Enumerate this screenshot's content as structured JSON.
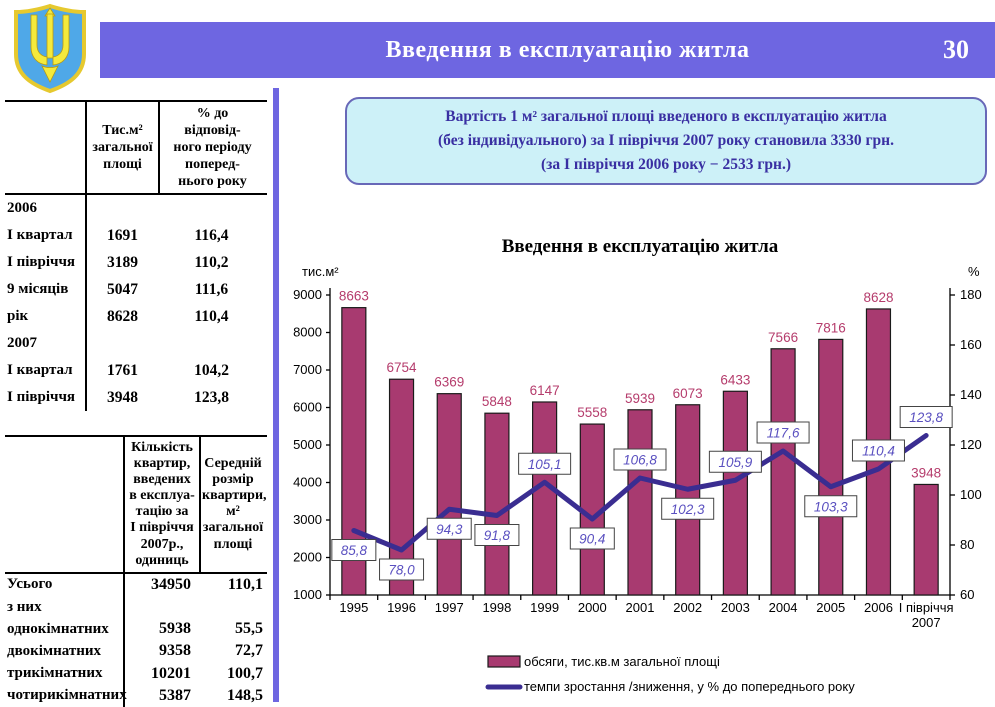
{
  "header": {
    "title": "Введення в експлуатацію житла",
    "page_number": "30"
  },
  "emblem": {
    "name": "ukraine-coat-of-arms",
    "shield_color": "#4fa8e8",
    "trident_color": "#f4ea3c",
    "border_color": "#e6c92f"
  },
  "accent_color": "#6e66e1",
  "info_box": {
    "text": "Вартість 1 м² загальної площі введеного в експлуатацію житла\n(без індивідуального) за І півріччя 2007 року становила 3330 грн.\n(за І півріччя 2006 року − 2533 грн.)"
  },
  "table1": {
    "col2_header": "Тис.м²\nзагальної\nплощі",
    "col3_header": "% до\nвідповід-\nного  періоду\nпоперед-\nнього року",
    "rows": [
      {
        "label": "2006",
        "area": "",
        "pct": ""
      },
      {
        "label": "І квартал",
        "area": "1691",
        "pct": "116,4"
      },
      {
        "label": "І півріччя",
        "area": "3189",
        "pct": "110,2"
      },
      {
        "label": "9 місяців",
        "area": "5047",
        "pct": "111,6"
      },
      {
        "label": "рік",
        "area": "8628",
        "pct": "110,4"
      },
      {
        "label": "2007",
        "area": "",
        "pct": ""
      },
      {
        "label": "І квартал",
        "area": "1761",
        "pct": "104,2"
      },
      {
        "label": "І півріччя",
        "area": "3948",
        "pct": "123,8"
      }
    ]
  },
  "table2": {
    "col2_header": "Кількість\nквартир,\nвведених\nв експлуа-\nтацію за\nІ півріччя\n2007р.,\nодиниць",
    "col3_header": "Середній\nрозмір\nквартири,\nм²\nзагальної\nплощі",
    "rows": [
      {
        "label": "Усього",
        "count": "34950",
        "size": "110,1"
      },
      {
        "label": "з них",
        "count": "",
        "size": ""
      },
      {
        "label": "однокімнатних",
        "count": "5938",
        "size": "55,5"
      },
      {
        "label": "двокімнатних",
        "count": "9358",
        "size": "72,7"
      },
      {
        "label": "трикімнатних",
        "count": "10201",
        "size": "100,7"
      },
      {
        "label": "чотирикімнатних",
        "count": "5387",
        "size": "148,5"
      }
    ]
  },
  "chart_data": {
    "type": "bar",
    "combo": "bar+line",
    "title": "Введення в експлуатацію житла",
    "left_axis": {
      "label": "тис.м²",
      "min": 1000,
      "max": 9000,
      "step": 1000
    },
    "right_axis": {
      "label": "%",
      "min": 60,
      "max": 180,
      "step": 20
    },
    "categories": [
      "1995",
      "1996",
      "1997",
      "1998",
      "1999",
      "2000",
      "2001",
      "2002",
      "2003",
      "2004",
      "2005",
      "2006",
      "І півріччя\n2007"
    ],
    "series": [
      {
        "name": "обсяги, тис.кв.м загальної площі",
        "type": "bar",
        "axis": "left",
        "color": "#a83a70",
        "values": [
          8663,
          6754,
          6369,
          5848,
          6147,
          5558,
          5939,
          6073,
          6433,
          7566,
          7816,
          8628,
          3948
        ]
      },
      {
        "name": "темпи зростання /зниження, у % до попереднього року",
        "type": "line",
        "axis": "right",
        "color": "#3a2d91",
        "values": [
          85.8,
          78.0,
          94.3,
          91.8,
          105.1,
          90.4,
          106.8,
          102.3,
          105.9,
          117.6,
          103.3,
          110.4,
          123.8
        ],
        "labels": [
          "85,8",
          "78,0",
          "94,3",
          "91,8",
          "105,1",
          "90,4",
          "106,8",
          "102,3",
          "105,9",
          "117,6",
          "103,3",
          "110,4",
          "123,8"
        ]
      }
    ],
    "bar_label_color": "#b53c6c",
    "line_label_color": "#5a50c0",
    "legend_position": "bottom",
    "grid": false
  }
}
